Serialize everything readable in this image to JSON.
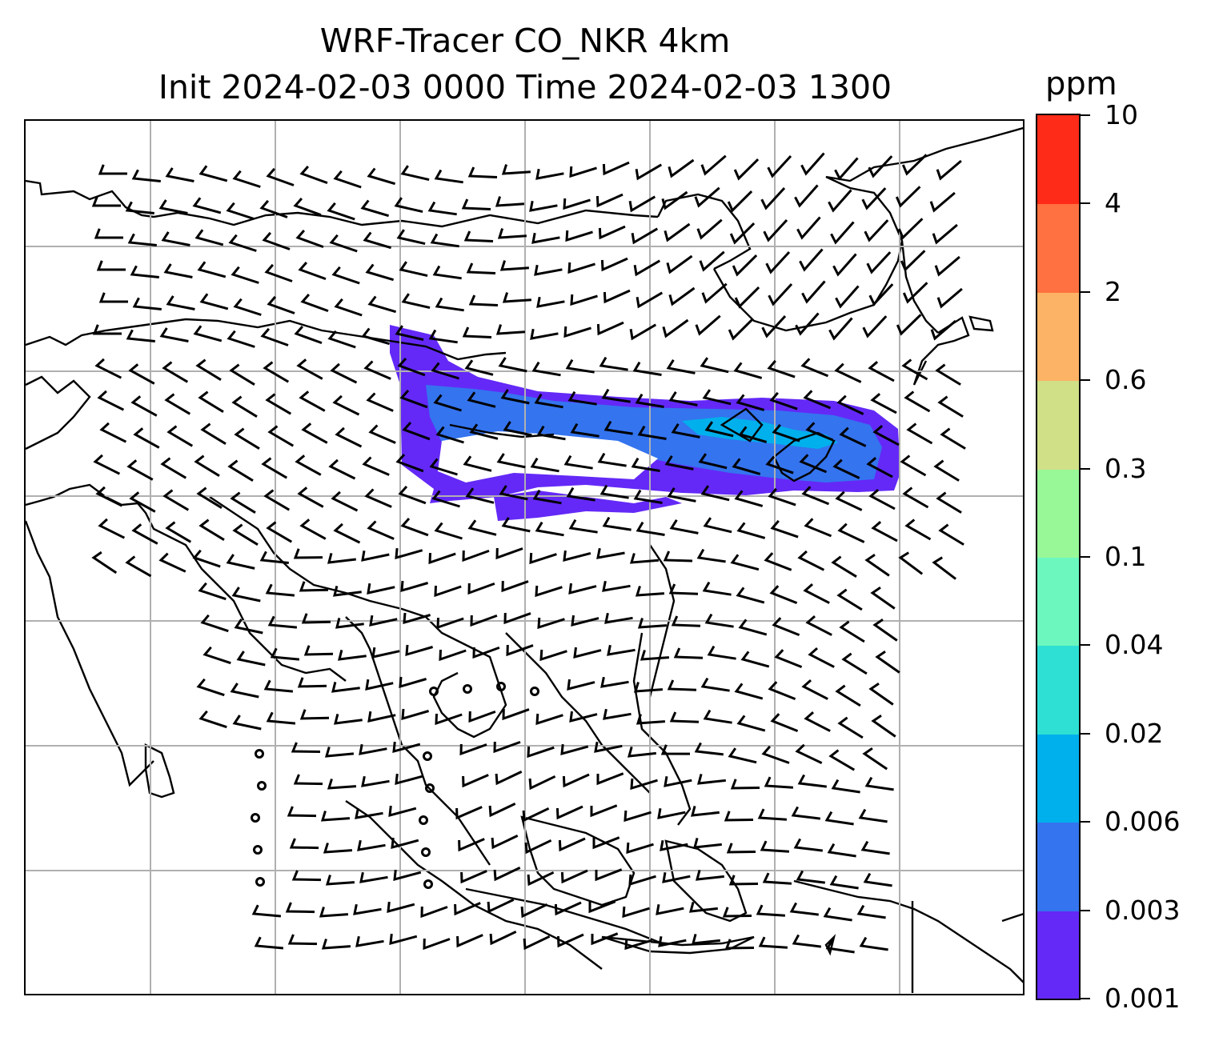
{
  "title": {
    "line1": "WRF-Tracer CO_NKR 4km",
    "line2": "Init 2024-02-03 0000 Time 2024-02-03 1300"
  },
  "colorbar": {
    "unit": "ppm",
    "levels": [
      {
        "label": "0.001",
        "color": "#6429f7"
      },
      {
        "label": "0.003",
        "color": "#3474ef"
      },
      {
        "label": "0.006",
        "color": "#00b0ec"
      },
      {
        "label": "0.02",
        "color": "#2ee0d4"
      },
      {
        "label": "0.04",
        "color": "#6cf7bf"
      },
      {
        "label": "0.1",
        "color": "#98f898"
      },
      {
        "label": "0.3",
        "color": "#d0e087"
      },
      {
        "label": "0.6",
        "color": "#fdb366"
      },
      {
        "label": "2",
        "color": "#ff7140"
      },
      {
        "label": "4",
        "color": "#fe2b18"
      },
      {
        "label": "10",
        "color": null
      }
    ]
  },
  "map": {
    "gridlines": true,
    "feature": "CO tracer plume over northeast Asia with wind barbs"
  }
}
